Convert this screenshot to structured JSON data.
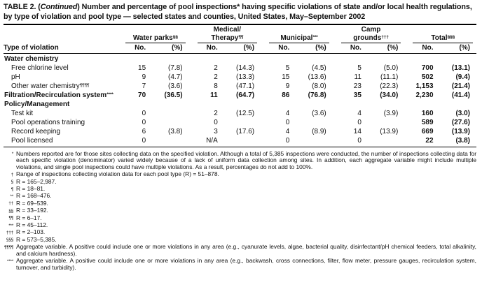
{
  "title": {
    "prefix": "TABLE 2. (",
    "continued": "Continued",
    "rest": ") Number and percentage of pool inspections* having specific violations of state and/or local health regulations, by type of violation and pool type — selected states and counties, United States, May–September 2002"
  },
  "table": {
    "row_header": "Type of violation",
    "col_no": "No.",
    "col_pct": "(%)",
    "groups": [
      {
        "line1": "",
        "label": "Water parks",
        "sup": "§§"
      },
      {
        "line1": "Medical/",
        "label": "Therapy",
        "sup": "¶¶"
      },
      {
        "line1": "",
        "label": "Municipal",
        "sup": "***"
      },
      {
        "line1": "Camp",
        "label": "grounds",
        "sup": "†††"
      },
      {
        "line1": "",
        "label": "Total",
        "sup": "§§§"
      }
    ],
    "rows": [
      {
        "label": "Water chemistry",
        "sup": "",
        "style": "cat",
        "cells": [
          "",
          "",
          "",
          "",
          "",
          "",
          "",
          "",
          "",
          ""
        ]
      },
      {
        "label": "Free chlorine level",
        "sup": "",
        "style": "sub",
        "cells": [
          "15",
          "(7.8)",
          "2",
          "(14.3)",
          "5",
          "(4.5)",
          "5",
          "(5.0)",
          "700",
          "(13.1)"
        ]
      },
      {
        "label": "pH",
        "sup": "",
        "style": "sub",
        "cells": [
          "9",
          "(4.7)",
          "2",
          "(13.3)",
          "15",
          "(13.6)",
          "11",
          "(11.1)",
          "502",
          "(9.4)"
        ]
      },
      {
        "label": "Other water chemistry",
        "sup": "¶¶¶¶",
        "style": "sub",
        "cells": [
          "7",
          "(3.6)",
          "8",
          "(47.1)",
          "9",
          "(8.0)",
          "23",
          "(22.3)",
          "1,153",
          "(21.4)"
        ]
      },
      {
        "label": "Filtration/Recirculation system",
        "sup": "****",
        "style": "boldrow",
        "cells": [
          "70",
          "(36.5)",
          "11",
          "(64.7)",
          "86",
          "(76.8)",
          "35",
          "(34.0)",
          "2,230",
          "(41.4)"
        ]
      },
      {
        "label": "Policy/Management",
        "sup": "",
        "style": "cat",
        "cells": [
          "",
          "",
          "",
          "",
          "",
          "",
          "",
          "",
          "",
          ""
        ]
      },
      {
        "label": "Test kit",
        "sup": "",
        "style": "sub",
        "cells": [
          "0",
          "",
          "2",
          "(12.5)",
          "4",
          "(3.6)",
          "4",
          "(3.9)",
          "160",
          "(3.0)"
        ]
      },
      {
        "label": "Pool operations training",
        "sup": "",
        "style": "sub",
        "cells": [
          "0",
          "",
          "0",
          "",
          "0",
          "",
          "0",
          "",
          "589",
          "(27.6)"
        ]
      },
      {
        "label": "Record keeping",
        "sup": "",
        "style": "sub",
        "cells": [
          "6",
          "(3.8)",
          "3",
          "(17.6)",
          "4",
          "(8.9)",
          "14",
          "(13.9)",
          "669",
          "(13.9)"
        ]
      },
      {
        "label": "Pool licensed",
        "sup": "",
        "style": "sub",
        "cells": [
          "0",
          "",
          "N/A",
          "",
          "0",
          "",
          "0",
          "",
          "22",
          "(3.8)"
        ]
      }
    ]
  },
  "footnotes": [
    {
      "marker": "*",
      "text": "Numbers reported are for those sites collecting data on the specified violation. Although a total of 5,385 inspections were conducted, the number of inspections collecting data for each specific violation (denominator) varied widely because of a lack of uniform data collection among sites. In addition, each aggregate variable might include multiple violations, and single pool inspections could have multiple violations. As a result, percentages do not add to 100%."
    },
    {
      "marker": "†",
      "text": "Range of inspections collecting violation data for each pool type (R) = 51–878."
    },
    {
      "marker": "§",
      "text": "R = 165–2,987."
    },
    {
      "marker": "¶",
      "text": "R = 18–81."
    },
    {
      "marker": "**",
      "text": "R = 168–476."
    },
    {
      "marker": "††",
      "text": "R = 69–539."
    },
    {
      "marker": "§§",
      "text": "R = 33–192."
    },
    {
      "marker": "¶¶",
      "text": "R = 6–17."
    },
    {
      "marker": "***",
      "text": "R = 45–112."
    },
    {
      "marker": "†††",
      "text": "R = 2–103."
    },
    {
      "marker": "§§§",
      "text": "R = 573–5,385."
    },
    {
      "marker": "¶¶¶¶",
      "text": "Aggregate variable. A positive could include one or more violations in any area (e.g., cyanurate levels, algae, bacterial quality, disinfectant/pH chemical feeders, total alkalinity, and calcium hardness)."
    },
    {
      "marker": "****",
      "text": "Aggregate variable. A positive could include one or more violations in any area (e.g., backwash, cross connections, filter, flow meter, pressure gauges, recirculation system, turnover, and turbidity)."
    }
  ]
}
